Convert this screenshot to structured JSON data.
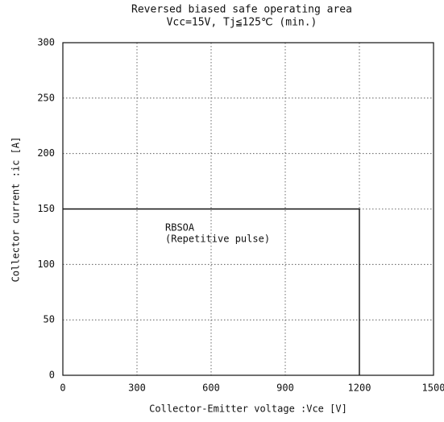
{
  "chart_data": {
    "type": "line",
    "title": "Reversed biased safe operating area",
    "subtitle": "Vcc=15V, Tj≦125℃ (min.)",
    "x_label": "Collector-Emitter voltage :Vce [V]",
    "y_label": "Collector current :ic [A]",
    "annotations": [
      "RBSOA",
      "(Repetitive pulse)"
    ],
    "x": [
      0,
      1200,
      1200
    ],
    "series": [
      {
        "name": "RBSOA",
        "color": "#111111",
        "values": [
          150,
          150,
          0
        ]
      }
    ],
    "xlim": [
      0,
      1500
    ],
    "xticks": [
      0,
      300,
      600,
      900,
      1200,
      1500
    ],
    "ylim": [
      0,
      300
    ],
    "yticks": [
      0,
      50,
      100,
      150,
      200,
      250,
      300
    ],
    "grid": true
  }
}
